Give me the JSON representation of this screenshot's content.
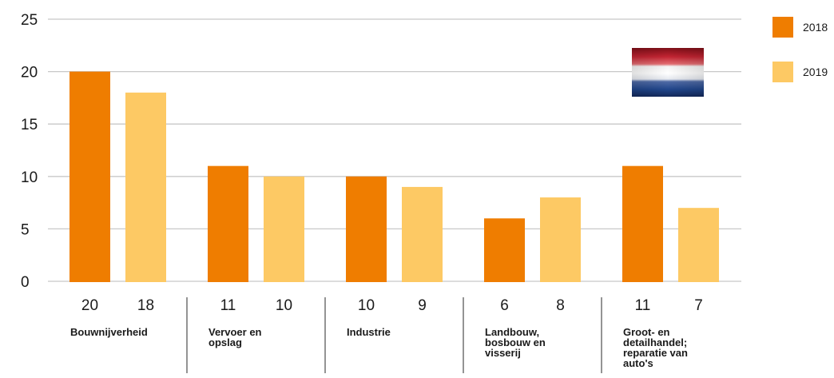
{
  "chart_data": {
    "type": "bar",
    "categories": [
      [
        "Bouwnijverheid"
      ],
      [
        "Vervoer en",
        "opslag"
      ],
      [
        "Industrie"
      ],
      [
        "Landbouw,",
        "bosbouw en",
        "visserij"
      ],
      [
        "Groot- en",
        "detailhandel;",
        "reparatie van",
        "auto's"
      ]
    ],
    "series": [
      {
        "name": "2018",
        "color": "#ef7d00",
        "values": [
          20,
          11,
          10,
          6,
          11
        ],
        "labels": [
          "20",
          "11",
          "10",
          "6",
          "11"
        ]
      },
      {
        "name": "2019",
        "color": "#fdc964",
        "values": [
          18,
          10,
          9,
          8,
          7
        ],
        "labels": [
          "18",
          "10",
          "9",
          "8",
          "7"
        ]
      }
    ],
    "yticks": [
      "0",
      "5",
      "10",
      "15",
      "20",
      "25"
    ],
    "ylim": [
      0,
      25
    ],
    "grid": true,
    "legend": "right",
    "title": "",
    "xlabel": "",
    "ylabel": "",
    "flag_icon": "netherlands-flag-icon",
    "flag_colors": [
      "#ae1c28",
      "#ffffff",
      "#21468b"
    ]
  }
}
